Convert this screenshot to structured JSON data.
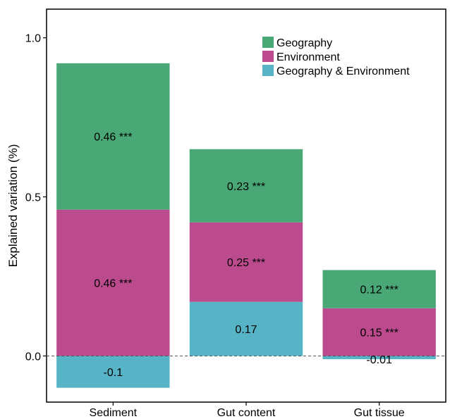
{
  "chart_data": {
    "type": "bar",
    "stacked": true,
    "title": "",
    "xlabel": "",
    "ylabel": "Explained variation (%)",
    "ylim": [
      -0.145,
      1.09
    ],
    "yticks": [
      0.0,
      0.5,
      1.0
    ],
    "ytick_labels": [
      "0.0",
      "0.5",
      "1.0"
    ],
    "categories": [
      "Sediment",
      "Gut content",
      "Gut tissue"
    ],
    "series": [
      {
        "name": "Geography & Environment",
        "color": "#56b4c6",
        "values": [
          -0.1,
          0.17,
          -0.01
        ],
        "labels": [
          "-0.1",
          "0.17",
          "-0.01"
        ]
      },
      {
        "name": "Environment",
        "color": "#bc4b8e",
        "values": [
          0.46,
          0.25,
          0.15
        ],
        "labels": [
          "0.46 ***",
          "0.25 ***",
          "0.15 ***"
        ]
      },
      {
        "name": "Geography",
        "color": "#4aa877",
        "values": [
          0.46,
          0.23,
          0.12
        ],
        "labels": [
          "0.46 ***",
          "0.23 ***",
          "0.12 ***"
        ]
      }
    ],
    "legend": {
      "position": "top-right",
      "order": [
        "Geography",
        "Environment",
        "Geography & Environment"
      ]
    },
    "zero_line": "dashed",
    "grid": false
  }
}
